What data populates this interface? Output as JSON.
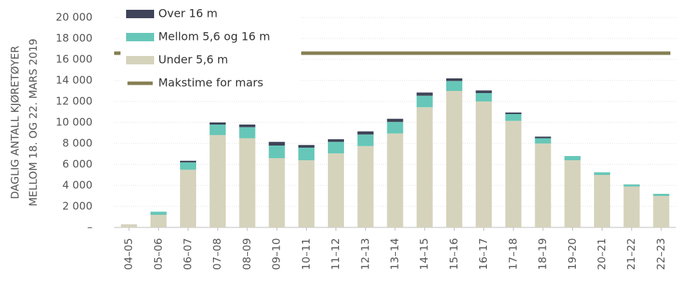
{
  "chart_data": {
    "type": "bar",
    "ylabel": [
      "DAGLIG ANTALL KJØRETØYER",
      "MELLOM 18. OG 22. MARS 2019"
    ],
    "categories": [
      "04–05",
      "05–06",
      "06–07",
      "07–08",
      "08–09",
      "09–10",
      "10–11",
      "11–12",
      "12–13",
      "13–14",
      "14–15",
      "15–16",
      "16–17",
      "17–18",
      "18–19",
      "19–20",
      "20–21",
      "21–22",
      "22–23"
    ],
    "series": [
      {
        "name": "Under 5,6 m",
        "color": "#d6d3bc",
        "values": [
          300,
          1200,
          5500,
          8800,
          8500,
          6600,
          6400,
          7050,
          7750,
          8950,
          11450,
          13000,
          12000,
          10150,
          8000,
          6400,
          5000,
          3900,
          3000
        ]
      },
      {
        "name": "Mellom 5,6 og 16 m",
        "color": "#66c7b8",
        "values": [
          0,
          300,
          700,
          1000,
          1050,
          1200,
          1200,
          1100,
          1100,
          1100,
          1100,
          950,
          800,
          650,
          500,
          400,
          250,
          200,
          200
        ]
      },
      {
        "name": "Over 16 m",
        "color": "#3f4458",
        "values": [
          0,
          0,
          150,
          200,
          250,
          350,
          250,
          250,
          300,
          300,
          300,
          250,
          250,
          150,
          150,
          0,
          0,
          0,
          0
        ]
      }
    ],
    "line": {
      "name": "Makstime for mars",
      "color": "#857f53",
      "value": 16600
    },
    "ylim": [
      0,
      20000
    ],
    "yticks": [
      {
        "value": 0,
        "label": "–"
      },
      {
        "value": 2000,
        "label": "2 000"
      },
      {
        "value": 4000,
        "label": "4 000"
      },
      {
        "value": 6000,
        "label": "6 000"
      },
      {
        "value": 8000,
        "label": "8 000"
      },
      {
        "value": 10000,
        "label": "10 000"
      },
      {
        "value": 12000,
        "label": "12 000"
      },
      {
        "value": 14000,
        "label": "14 000"
      },
      {
        "value": 16000,
        "label": "16 000"
      },
      {
        "value": 18000,
        "label": "18 000"
      },
      {
        "value": 20000,
        "label": "20 000"
      }
    ],
    "grid": true
  }
}
